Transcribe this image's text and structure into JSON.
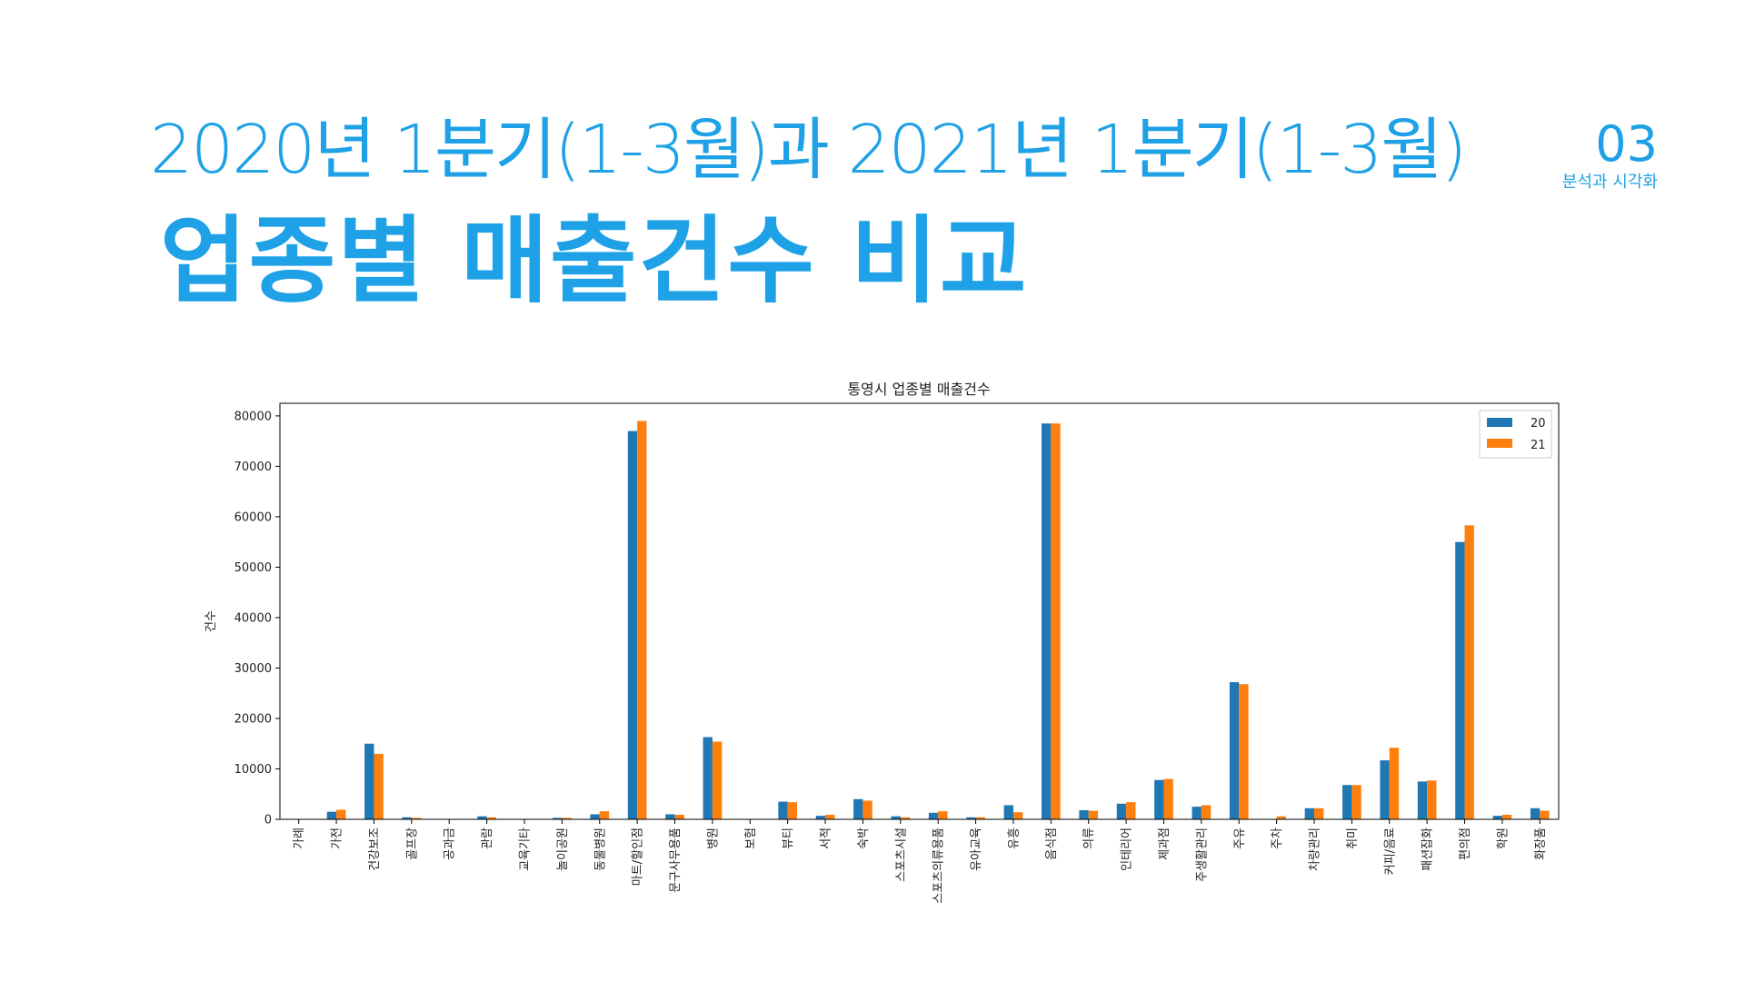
{
  "slide": {
    "subtitle": "2020년 1분기(1-3월)과 2021년 1분기(1-3월)",
    "title": "업종별 매출건수 비교",
    "section_number": "03",
    "section_label": "분석과 시각화"
  },
  "colors": {
    "accent": "#1ea1e6",
    "series_20": "#1f77b4",
    "series_21": "#ff7f0e"
  },
  "chart_data": {
    "type": "bar",
    "title": "통영시 업종별 매출건수",
    "xlabel": "",
    "ylabel": "건수",
    "ylim": [
      0,
      82500
    ],
    "yticks": [
      0,
      10000,
      20000,
      30000,
      40000,
      50000,
      60000,
      70000,
      80000
    ],
    "legend_position": "top-right",
    "grid": false,
    "categories": [
      "가례",
      "가전",
      "건강보조",
      "골프장",
      "공과금",
      "관람",
      "교육기타",
      "놀이공원",
      "동물병원",
      "마트/할인점",
      "문구사무용품",
      "병원",
      "보험",
      "뷰티",
      "서적",
      "숙박",
      "스포츠시설",
      "스포츠의류용품",
      "유아교육",
      "유흥",
      "음식점",
      "의류",
      "인테리어",
      "제과점",
      "주생활관리",
      "주유",
      "주차",
      "차량관리",
      "취미",
      "커피/음료",
      "패션잡화",
      "편의점",
      "학원",
      "화장품"
    ],
    "series": [
      {
        "name": "20",
        "values": [
          0,
          1500,
          15000,
          400,
          0,
          600,
          0,
          300,
          1000,
          77000,
          1000,
          16300,
          0,
          3500,
          700,
          4000,
          600,
          1300,
          400,
          2800,
          78500,
          1800,
          3100,
          7800,
          2500,
          27200,
          0,
          2200,
          6800,
          11700,
          7500,
          55000,
          700,
          2200
        ]
      },
      {
        "name": "21",
        "values": [
          0,
          1900,
          13000,
          300,
          0,
          400,
          0,
          300,
          1600,
          79000,
          900,
          15400,
          0,
          3400,
          900,
          3700,
          400,
          1600,
          400,
          1400,
          78500,
          1700,
          3400,
          8000,
          2800,
          26800,
          600,
          2200,
          6800,
          14200,
          7700,
          58300,
          900,
          1700
        ]
      }
    ]
  }
}
